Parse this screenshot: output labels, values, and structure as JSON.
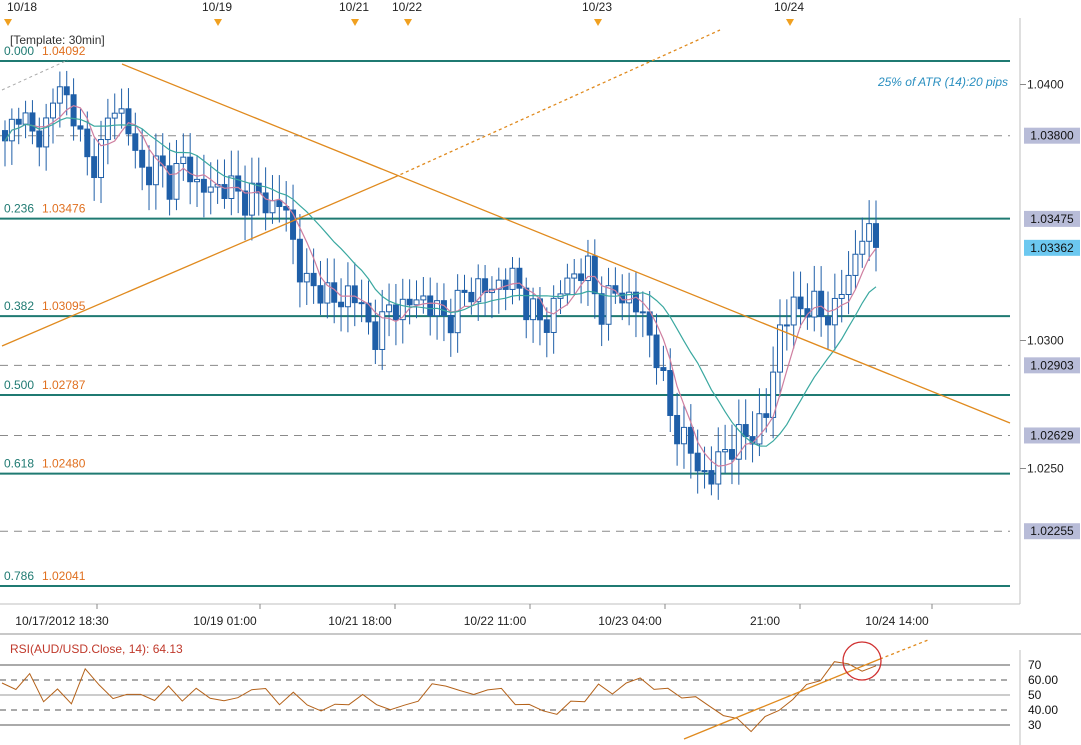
{
  "template_label": "[Template: 30min]",
  "atr_note": "25% of ATR (14):20 pips",
  "colors": {
    "up_candle": "#ffffff",
    "candle": "#1f5fa8",
    "fib_line": "#1f7a72",
    "fib_ratio_text": "#1f7a72",
    "fib_price_text": "#e07020",
    "trendline": "#e08a1e",
    "ma_fast": "#cf7fa0",
    "ma_slow": "#3aa8a0",
    "rsi_line": "#b4621a",
    "price_tag_bg": "#b8bcd8",
    "price_tag_current_bg": "#6cc8f0",
    "circle": "#d03030",
    "atr_text": "#2a8fc0",
    "event_marker": "#f0a020"
  },
  "top_dates": [
    "10/18",
    "10/19",
    "10/21",
    "10/22",
    "10/23",
    "10/24"
  ],
  "price_axis": {
    "ticks": [
      "1.0400",
      "1.0300",
      "1.0250"
    ],
    "tags": [
      {
        "text": "1.03800",
        "current": false
      },
      {
        "text": "1.03475",
        "current": false
      },
      {
        "text": "1.03362",
        "current": true
      },
      {
        "text": "1.02903",
        "current": false
      },
      {
        "text": "1.02629",
        "current": false
      },
      {
        "text": "1.02255",
        "current": false
      }
    ]
  },
  "fib_levels": [
    {
      "ratio": "0.000",
      "price": "1.04092"
    },
    {
      "ratio": "0.236",
      "price": "1.03476"
    },
    {
      "ratio": "0.382",
      "price": "1.03095"
    },
    {
      "ratio": "0.500",
      "price": "1.02787"
    },
    {
      "ratio": "0.618",
      "price": "1.02480"
    },
    {
      "ratio": "0.786",
      "price": "1.02041"
    }
  ],
  "time_axis": [
    "10/17/2012 18:30",
    "10/19 01:00",
    "10/21 18:00",
    "10/22 11:00",
    "10/23 04:00",
    "21:00",
    "10/24 14:00"
  ],
  "rsi": {
    "title": "RSI(AUD/USD.Close, 14): 64.13",
    "axis_labels": [
      "70",
      "60.00",
      "50",
      "40.00",
      "30"
    ]
  },
  "chart_data": {
    "type": "candlestick",
    "title": "",
    "instrument": "AUD/USD",
    "interval": "30min",
    "ylim": [
      1.02,
      1.0417
    ],
    "grid": false,
    "horizontal_levels": [
      1.038,
      1.02903,
      1.02629,
      1.02255
    ],
    "current_price": 1.03362,
    "fib_levels": [
      {
        "ratio": 0.0,
        "price": 1.04092
      },
      {
        "ratio": 0.236,
        "price": 1.03476
      },
      {
        "ratio": 0.382,
        "price": 1.03095
      },
      {
        "ratio": 0.5,
        "price": 1.02787
      },
      {
        "ratio": 0.618,
        "price": 1.0248
      },
      {
        "ratio": 0.786,
        "price": 1.02041
      }
    ],
    "price_waypoints": [
      1.0375,
      1.0392,
      1.0378,
      1.0385,
      1.04,
      1.0388,
      1.0368,
      1.0375,
      1.0395,
      1.038,
      1.0365,
      1.0368,
      1.0362,
      1.037,
      1.036,
      1.0358,
      1.0362,
      1.0355,
      1.0358,
      1.0352,
      1.0355,
      1.0335,
      1.0318,
      1.0322,
      1.0312,
      1.0322,
      1.0308,
      1.0302,
      1.0315,
      1.0312,
      1.0318,
      1.0312,
      1.0308,
      1.0316,
      1.0322,
      1.0318,
      1.0325,
      1.0322,
      1.0312,
      1.0305,
      1.0318,
      1.0325,
      1.033,
      1.0312,
      1.0318,
      1.0318,
      1.031,
      1.0298,
      1.0272,
      1.0262,
      1.0252,
      1.0245,
      1.0258,
      1.026,
      1.0265,
      1.0268,
      1.0305,
      1.0312,
      1.0315,
      1.031,
      1.0312,
      1.0325,
      1.0342,
      1.0338
    ],
    "rsi_values": [
      58,
      55,
      62,
      48,
      52,
      45,
      68,
      55,
      50,
      48,
      52,
      46,
      55,
      48,
      52,
      50,
      45,
      48,
      55,
      52,
      46,
      50,
      44,
      40,
      42,
      46,
      48,
      45,
      40,
      42,
      48,
      55,
      58,
      52,
      50,
      55,
      52,
      46,
      42,
      40,
      38,
      44,
      48,
      55,
      52,
      58,
      60,
      56,
      52,
      50,
      48,
      42,
      38,
      32,
      28,
      34,
      40,
      48,
      55,
      62,
      70,
      72,
      66,
      68
    ],
    "rsi_levels": [
      70,
      60,
      50,
      40,
      30
    ]
  }
}
